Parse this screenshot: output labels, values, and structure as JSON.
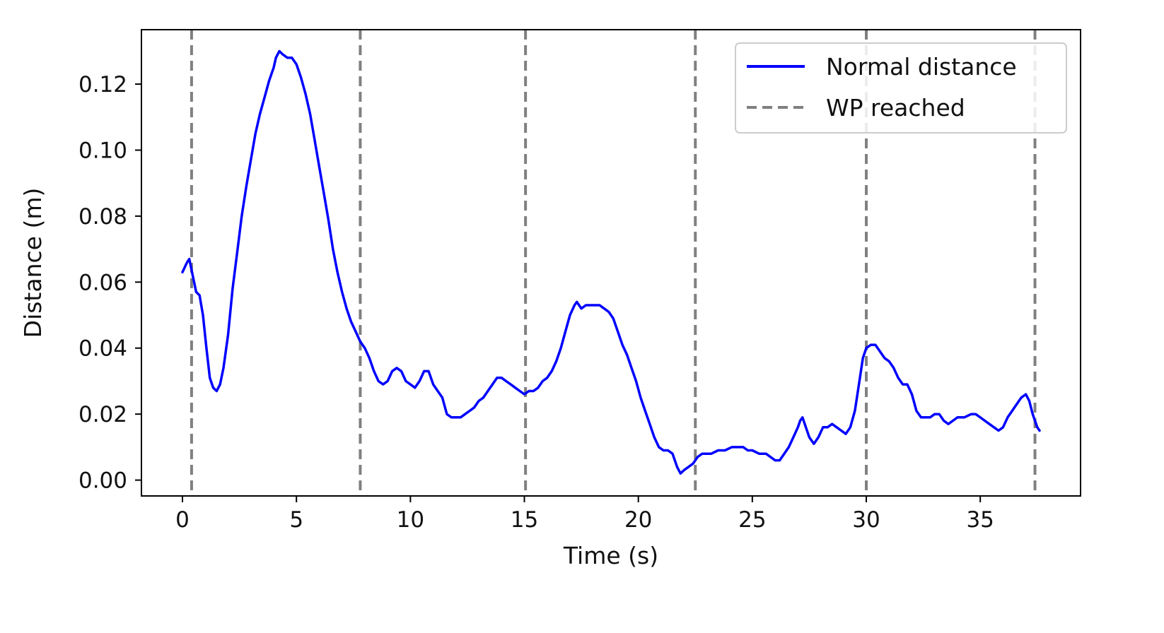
{
  "chart_data": {
    "type": "line",
    "title": "",
    "xlabel": "Time (s)",
    "ylabel": "Distance (m)",
    "xlim": [
      -1.8,
      39.4
    ],
    "ylim": [
      -0.0048,
      0.1365
    ],
    "x_ticks": [
      0,
      5,
      10,
      15,
      20,
      25,
      30,
      35
    ],
    "x_tick_labels": [
      "0",
      "5",
      "10",
      "15",
      "20",
      "25",
      "30",
      "35"
    ],
    "y_ticks": [
      0.0,
      0.02,
      0.04,
      0.06,
      0.08,
      0.1,
      0.12
    ],
    "y_tick_labels": [
      "0.00",
      "0.02",
      "0.04",
      "0.06",
      "0.08",
      "0.10",
      "0.12"
    ],
    "grid": false,
    "legend_position": "top-right",
    "series": [
      {
        "name": "Normal distance",
        "style": "solid",
        "color": "#0000ff",
        "points": [
          [
            0.0,
            0.063
          ],
          [
            0.2,
            0.066
          ],
          [
            0.3,
            0.067
          ],
          [
            0.45,
            0.062
          ],
          [
            0.6,
            0.057
          ],
          [
            0.75,
            0.056
          ],
          [
            0.9,
            0.05
          ],
          [
            1.05,
            0.04
          ],
          [
            1.2,
            0.031
          ],
          [
            1.35,
            0.028
          ],
          [
            1.5,
            0.027
          ],
          [
            1.65,
            0.029
          ],
          [
            1.8,
            0.034
          ],
          [
            2.0,
            0.044
          ],
          [
            2.2,
            0.058
          ],
          [
            2.4,
            0.069
          ],
          [
            2.6,
            0.08
          ],
          [
            2.8,
            0.089
          ],
          [
            3.0,
            0.097
          ],
          [
            3.2,
            0.105
          ],
          [
            3.4,
            0.111
          ],
          [
            3.6,
            0.116
          ],
          [
            3.8,
            0.121
          ],
          [
            4.0,
            0.125
          ],
          [
            4.1,
            0.128
          ],
          [
            4.25,
            0.13
          ],
          [
            4.4,
            0.129
          ],
          [
            4.6,
            0.128
          ],
          [
            4.8,
            0.128
          ],
          [
            5.0,
            0.126
          ],
          [
            5.2,
            0.122
          ],
          [
            5.4,
            0.117
          ],
          [
            5.6,
            0.111
          ],
          [
            5.8,
            0.103
          ],
          [
            6.0,
            0.095
          ],
          [
            6.2,
            0.087
          ],
          [
            6.4,
            0.079
          ],
          [
            6.6,
            0.07
          ],
          [
            6.8,
            0.063
          ],
          [
            7.0,
            0.057
          ],
          [
            7.2,
            0.052
          ],
          [
            7.4,
            0.048
          ],
          [
            7.6,
            0.045
          ],
          [
            7.8,
            0.042
          ],
          [
            8.0,
            0.04
          ],
          [
            8.2,
            0.037
          ],
          [
            8.4,
            0.033
          ],
          [
            8.6,
            0.03
          ],
          [
            8.8,
            0.029
          ],
          [
            9.0,
            0.03
          ],
          [
            9.2,
            0.033
          ],
          [
            9.4,
            0.034
          ],
          [
            9.6,
            0.033
          ],
          [
            9.8,
            0.03
          ],
          [
            10.0,
            0.029
          ],
          [
            10.2,
            0.028
          ],
          [
            10.4,
            0.03
          ],
          [
            10.6,
            0.033
          ],
          [
            10.8,
            0.033
          ],
          [
            11.0,
            0.029
          ],
          [
            11.2,
            0.027
          ],
          [
            11.4,
            0.025
          ],
          [
            11.6,
            0.02
          ],
          [
            11.8,
            0.019
          ],
          [
            12.0,
            0.019
          ],
          [
            12.2,
            0.019
          ],
          [
            12.4,
            0.02
          ],
          [
            12.6,
            0.021
          ],
          [
            12.8,
            0.022
          ],
          [
            13.0,
            0.024
          ],
          [
            13.2,
            0.025
          ],
          [
            13.4,
            0.027
          ],
          [
            13.6,
            0.029
          ],
          [
            13.8,
            0.031
          ],
          [
            14.0,
            0.031
          ],
          [
            14.2,
            0.03
          ],
          [
            14.4,
            0.029
          ],
          [
            14.6,
            0.028
          ],
          [
            14.8,
            0.027
          ],
          [
            15.0,
            0.026
          ],
          [
            15.2,
            0.027
          ],
          [
            15.4,
            0.027
          ],
          [
            15.6,
            0.028
          ],
          [
            15.8,
            0.03
          ],
          [
            16.0,
            0.031
          ],
          [
            16.2,
            0.033
          ],
          [
            16.4,
            0.036
          ],
          [
            16.6,
            0.04
          ],
          [
            16.8,
            0.045
          ],
          [
            17.0,
            0.05
          ],
          [
            17.2,
            0.053
          ],
          [
            17.3,
            0.054
          ],
          [
            17.5,
            0.052
          ],
          [
            17.7,
            0.053
          ],
          [
            17.9,
            0.053
          ],
          [
            18.1,
            0.053
          ],
          [
            18.3,
            0.053
          ],
          [
            18.5,
            0.052
          ],
          [
            18.7,
            0.051
          ],
          [
            18.9,
            0.049
          ],
          [
            19.1,
            0.045
          ],
          [
            19.3,
            0.041
          ],
          [
            19.5,
            0.038
          ],
          [
            19.7,
            0.034
          ],
          [
            19.9,
            0.03
          ],
          [
            20.1,
            0.025
          ],
          [
            20.3,
            0.021
          ],
          [
            20.5,
            0.017
          ],
          [
            20.7,
            0.013
          ],
          [
            20.9,
            0.01
          ],
          [
            21.1,
            0.009
          ],
          [
            21.3,
            0.009
          ],
          [
            21.5,
            0.008
          ],
          [
            21.7,
            0.004
          ],
          [
            21.85,
            0.002
          ],
          [
            22.0,
            0.003
          ],
          [
            22.2,
            0.004
          ],
          [
            22.4,
            0.005
          ],
          [
            22.6,
            0.007
          ],
          [
            22.8,
            0.008
          ],
          [
            23.0,
            0.008
          ],
          [
            23.2,
            0.008
          ],
          [
            23.5,
            0.009
          ],
          [
            23.8,
            0.009
          ],
          [
            24.1,
            0.01
          ],
          [
            24.4,
            0.01
          ],
          [
            24.6,
            0.01
          ],
          [
            24.8,
            0.009
          ],
          [
            25.0,
            0.009
          ],
          [
            25.3,
            0.008
          ],
          [
            25.6,
            0.008
          ],
          [
            25.8,
            0.007
          ],
          [
            26.0,
            0.006
          ],
          [
            26.2,
            0.006
          ],
          [
            26.4,
            0.008
          ],
          [
            26.6,
            0.01
          ],
          [
            26.8,
            0.013
          ],
          [
            27.0,
            0.016
          ],
          [
            27.1,
            0.018
          ],
          [
            27.2,
            0.019
          ],
          [
            27.3,
            0.017
          ],
          [
            27.5,
            0.013
          ],
          [
            27.7,
            0.011
          ],
          [
            27.9,
            0.013
          ],
          [
            28.1,
            0.016
          ],
          [
            28.3,
            0.016
          ],
          [
            28.5,
            0.017
          ],
          [
            28.7,
            0.016
          ],
          [
            28.9,
            0.015
          ],
          [
            29.1,
            0.014
          ],
          [
            29.3,
            0.016
          ],
          [
            29.5,
            0.021
          ],
          [
            29.7,
            0.03
          ],
          [
            29.85,
            0.037
          ],
          [
            30.0,
            0.04
          ],
          [
            30.2,
            0.041
          ],
          [
            30.4,
            0.041
          ],
          [
            30.6,
            0.039
          ],
          [
            30.8,
            0.037
          ],
          [
            31.0,
            0.036
          ],
          [
            31.2,
            0.034
          ],
          [
            31.4,
            0.031
          ],
          [
            31.6,
            0.029
          ],
          [
            31.8,
            0.029
          ],
          [
            32.0,
            0.026
          ],
          [
            32.2,
            0.021
          ],
          [
            32.4,
            0.019
          ],
          [
            32.6,
            0.019
          ],
          [
            32.8,
            0.019
          ],
          [
            33.0,
            0.02
          ],
          [
            33.2,
            0.02
          ],
          [
            33.4,
            0.018
          ],
          [
            33.6,
            0.017
          ],
          [
            33.8,
            0.018
          ],
          [
            34.0,
            0.019
          ],
          [
            34.3,
            0.019
          ],
          [
            34.6,
            0.02
          ],
          [
            34.8,
            0.02
          ],
          [
            35.0,
            0.019
          ],
          [
            35.2,
            0.018
          ],
          [
            35.4,
            0.017
          ],
          [
            35.6,
            0.016
          ],
          [
            35.8,
            0.015
          ],
          [
            36.0,
            0.016
          ],
          [
            36.2,
            0.019
          ],
          [
            36.4,
            0.021
          ],
          [
            36.6,
            0.023
          ],
          [
            36.8,
            0.025
          ],
          [
            37.0,
            0.026
          ],
          [
            37.15,
            0.024
          ],
          [
            37.3,
            0.02
          ],
          [
            37.5,
            0.016
          ],
          [
            37.6,
            0.015
          ]
        ]
      },
      {
        "name": "WP reached",
        "style": "dashed",
        "color": "#808080",
        "x_positions": [
          0.4,
          7.8,
          15.05,
          22.5,
          30.0,
          37.4
        ]
      }
    ]
  }
}
